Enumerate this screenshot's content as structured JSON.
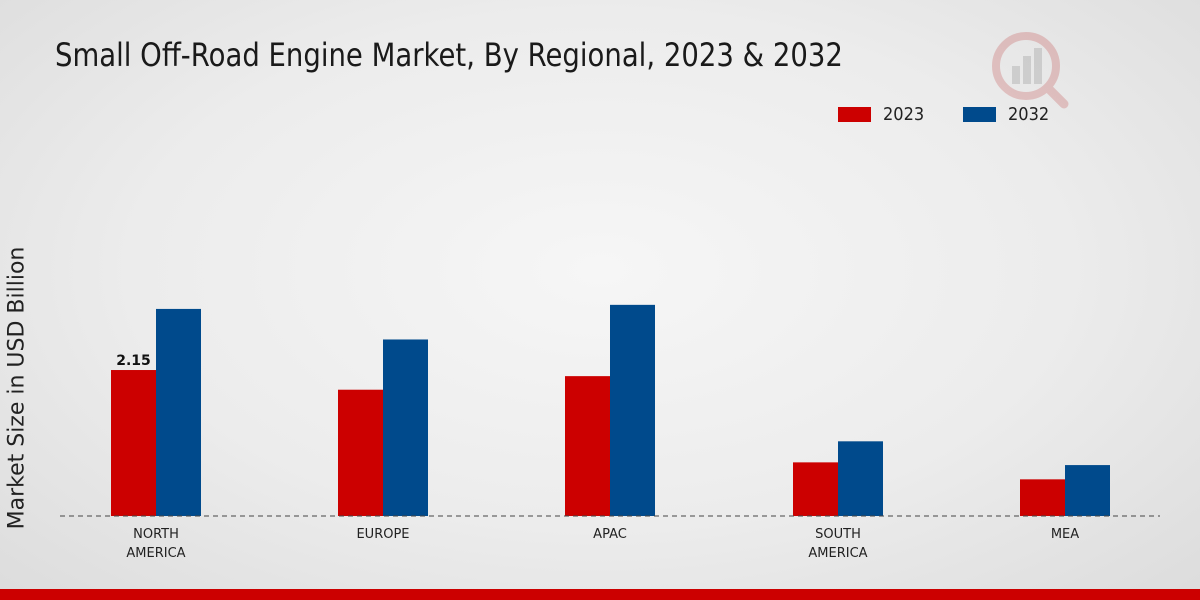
{
  "chart_data": {
    "type": "bar",
    "title": "Small Off-Road Engine Market, By Regional, 2023 & 2032",
    "xlabel": "",
    "ylabel": "Market Size in USD Billion",
    "categories": [
      "NORTH\nAMERICA",
      "EUROPE",
      "APAC",
      "SOUTH\nAMERICA",
      "MEA"
    ],
    "series": [
      {
        "name": "2023",
        "color": "#cc0000",
        "values": [
          2.15,
          1.86,
          2.06,
          0.79,
          0.54
        ]
      },
      {
        "name": "2032",
        "color": "#004a8c",
        "values": [
          3.05,
          2.6,
          3.11,
          1.1,
          0.75
        ]
      }
    ],
    "data_labels": [
      {
        "series": 0,
        "index": 0,
        "text": "2.15"
      }
    ],
    "ylim": [
      0,
      7.6
    ],
    "legend_position": "top-right",
    "grid": false
  }
}
